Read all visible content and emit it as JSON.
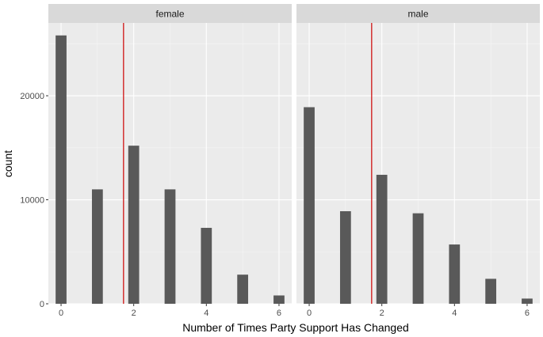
{
  "chart_data": {
    "type": "bar",
    "xlabel": "Number of Times Party Support Has Changed",
    "ylabel": "count",
    "x_ticks": [
      0,
      2,
      4,
      6
    ],
    "y_ticks": [
      0,
      10000,
      20000
    ],
    "y_tick_labels": [
      "0",
      "10000",
      "20000"
    ],
    "xlim": [
      -0.35,
      6.35
    ],
    "ylim": [
      0,
      27000
    ],
    "grid": true,
    "bar_color": "#595959",
    "vline_color": "#cc0000",
    "panel_bg": "#ebebeb",
    "strip_bg": "#d9d9d9",
    "panels": [
      {
        "strip_label": "female",
        "categories": [
          0,
          1,
          2,
          3,
          4,
          5,
          6
        ],
        "values": [
          25800,
          11000,
          15200,
          11000,
          7300,
          2800,
          800
        ],
        "mean_line": 1.72
      },
      {
        "strip_label": "male",
        "categories": [
          0,
          1,
          2,
          3,
          4,
          5,
          6
        ],
        "values": [
          18900,
          8900,
          12400,
          8700,
          5700,
          2400,
          500
        ],
        "mean_line": 1.72
      }
    ]
  }
}
